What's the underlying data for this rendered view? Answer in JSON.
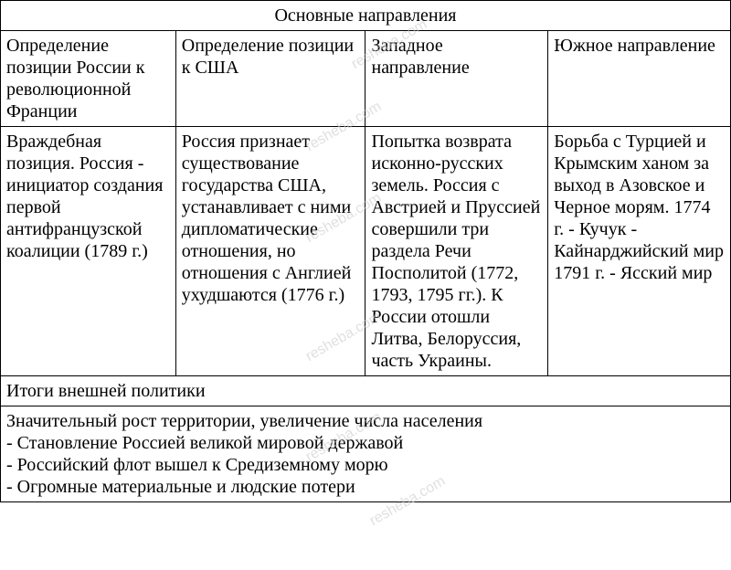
{
  "watermark": {
    "text": "resheba.com",
    "color": "#cccccc",
    "font_size": 16,
    "rotation_deg": -30
  },
  "table": {
    "border_color": "#000000",
    "font_family": "Times New Roman",
    "font_size": 20,
    "background_color": "#ffffff",
    "text_color": "#000000",
    "column_widths_pct": [
      24,
      26,
      25,
      25
    ],
    "title": "Основные направления",
    "headers": [
      "Определение позиции России к революционной Франции",
      "Определение позиции к США",
      "Западное направление",
      "Южное направление"
    ],
    "cells": [
      "Враждебная позиция. Россия - инициатор создания первой антифранцузской коалиции (1789 г.)",
      "Россия признает существование государства США, устанавливает с ними дипломатические отношения, но отношения с Англией ухудшаются (1776 г.)",
      "Попытка возврата исконно-русских земель. Россия с Австрией и Пруссией совершили три раздела Речи Посполитой (1772, 1793, 1795 гг.). К России отошли Литва, Белоруссия, часть Украины.",
      "Борьба с Турцией и Крымским ханом за выход в Азовское и Черное морям. 1774 г. - Кучук - Кайнарджийский мир\n1791 г. - Ясский мир"
    ],
    "results_title": "Итоги внешней политики",
    "results_body": "Значительный рост территории, увеличение числа населения\n- Становление Россией великой мировой державой\n- Российский флот вышел к Средиземному морю\n- Огромные материальные и людские потери"
  }
}
